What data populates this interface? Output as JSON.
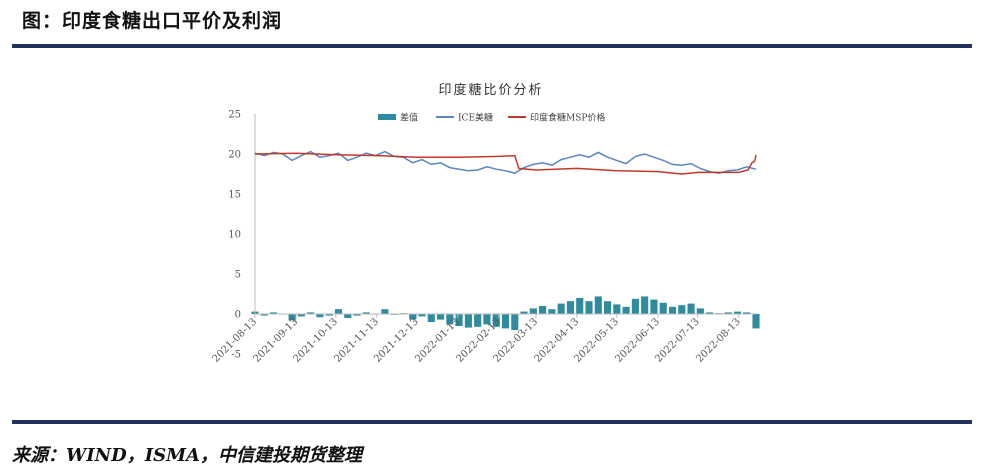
{
  "figure_title": "图：印度食糖出口平价及利润",
  "source": "来源：WIND，ISMA，中信建投期货整理",
  "colors": {
    "diff": "#2e8ba0",
    "ice": "#5b86c3",
    "msp": "#c0392b",
    "rule": "#1f2f5c"
  },
  "chart_data": {
    "type": "line",
    "title": "印度糖比价分析",
    "ylim": [
      -5,
      25
    ],
    "yticks": [
      "25",
      "20",
      "15",
      "10",
      "5",
      "0",
      "-5"
    ],
    "ytick_values": [
      25,
      20,
      15,
      10,
      5,
      0,
      -5
    ],
    "xticks": [
      "2021-08-13",
      "2021-09-13",
      "2021-10-13",
      "2021-11-13",
      "2021-12-13",
      "2022-01-13",
      "2022-02-13",
      "2022-03-13",
      "2022-04-13",
      "2022-05-13",
      "2022-06-13",
      "2022-07-13",
      "2022-08-13"
    ],
    "xlim": [
      "2021-08-13",
      "2022-08-26"
    ],
    "legend": [
      "差值",
      "ICE美糖",
      "印度食糖MSP价格"
    ],
    "legend_position": "top",
    "grid": false,
    "series": [
      {
        "name": "ICE美糖",
        "type": "line",
        "x": [
          "2021-08-13",
          "2021-08-20",
          "2021-08-27",
          "2021-09-03",
          "2021-09-10",
          "2021-09-17",
          "2021-09-24",
          "2021-10-01",
          "2021-10-08",
          "2021-10-15",
          "2021-10-22",
          "2021-10-29",
          "2021-11-05",
          "2021-11-12",
          "2021-11-19",
          "2021-11-26",
          "2021-12-03",
          "2021-12-10",
          "2021-12-17",
          "2021-12-24",
          "2021-12-31",
          "2022-01-07",
          "2022-01-14",
          "2022-01-21",
          "2022-01-28",
          "2022-02-04",
          "2022-02-11",
          "2022-02-18",
          "2022-02-25",
          "2022-03-04",
          "2022-03-11",
          "2022-03-18",
          "2022-03-25",
          "2022-04-01",
          "2022-04-08",
          "2022-04-15",
          "2022-04-22",
          "2022-04-29",
          "2022-05-06",
          "2022-05-13",
          "2022-05-20",
          "2022-05-27",
          "2022-06-03",
          "2022-06-10",
          "2022-06-17",
          "2022-06-24",
          "2022-07-01",
          "2022-07-08",
          "2022-07-15",
          "2022-07-22",
          "2022-07-29",
          "2022-08-05",
          "2022-08-12",
          "2022-08-19",
          "2022-08-26"
        ],
        "values": [
          20.1,
          19.8,
          20.2,
          20.0,
          19.2,
          19.8,
          20.3,
          19.6,
          19.8,
          20.1,
          19.2,
          19.6,
          20.1,
          19.8,
          20.3,
          19.7,
          19.6,
          18.9,
          19.3,
          18.7,
          18.9,
          18.3,
          18.1,
          17.9,
          18.0,
          18.4,
          18.1,
          17.9,
          17.6,
          18.3,
          18.7,
          18.9,
          18.6,
          19.3,
          19.6,
          19.9,
          19.6,
          20.2,
          19.6,
          19.2,
          18.8,
          19.7,
          20.0,
          19.6,
          19.2,
          18.7,
          18.6,
          18.8,
          18.2,
          17.8,
          17.6,
          17.9,
          18.0,
          18.4,
          18.1
        ]
      },
      {
        "name": "印度食糖MSP价格",
        "type": "line",
        "x": [
          "2021-08-13",
          "2021-09-13",
          "2021-10-13",
          "2021-11-13",
          "2021-12-13",
          "2022-01-13",
          "2022-02-13",
          "2022-02-25",
          "2022-02-28",
          "2022-03-13",
          "2022-04-13",
          "2022-05-13",
          "2022-06-13",
          "2022-07-01",
          "2022-07-13",
          "2022-08-13",
          "2022-08-20",
          "2022-08-23",
          "2022-08-25",
          "2022-08-26"
        ],
        "values": [
          20.0,
          20.1,
          19.9,
          19.8,
          19.6,
          19.6,
          19.7,
          19.8,
          18.2,
          18.0,
          18.2,
          17.9,
          17.8,
          17.5,
          17.7,
          17.7,
          18.0,
          18.9,
          19.1,
          19.9
        ]
      },
      {
        "name": "差值",
        "type": "area",
        "x": [
          "2021-08-13",
          "2021-08-20",
          "2021-08-27",
          "2021-09-03",
          "2021-09-10",
          "2021-09-17",
          "2021-09-24",
          "2021-10-01",
          "2021-10-08",
          "2021-10-15",
          "2021-10-22",
          "2021-10-29",
          "2021-11-05",
          "2021-11-12",
          "2021-11-19",
          "2021-11-26",
          "2021-12-03",
          "2021-12-10",
          "2021-12-17",
          "2021-12-24",
          "2021-12-31",
          "2022-01-07",
          "2022-01-14",
          "2022-01-21",
          "2022-01-28",
          "2022-02-04",
          "2022-02-11",
          "2022-02-18",
          "2022-02-25",
          "2022-03-04",
          "2022-03-11",
          "2022-03-18",
          "2022-03-25",
          "2022-04-01",
          "2022-04-08",
          "2022-04-15",
          "2022-04-22",
          "2022-04-29",
          "2022-05-06",
          "2022-05-13",
          "2022-05-20",
          "2022-05-27",
          "2022-06-03",
          "2022-06-10",
          "2022-06-17",
          "2022-06-24",
          "2022-07-01",
          "2022-07-08",
          "2022-07-15",
          "2022-07-22",
          "2022-07-29",
          "2022-08-05",
          "2022-08-12",
          "2022-08-19",
          "2022-08-26"
        ],
        "values": [
          0.3,
          -0.2,
          0.2,
          0.0,
          -0.8,
          -0.3,
          0.2,
          -0.4,
          -0.2,
          0.6,
          -0.5,
          -0.2,
          0.2,
          0.0,
          0.6,
          -0.1,
          0.1,
          -0.7,
          -0.3,
          -1.0,
          -0.7,
          -1.3,
          -1.5,
          -1.7,
          -1.6,
          -1.3,
          -1.6,
          -1.8,
          -2.0,
          0.3,
          0.7,
          1.0,
          0.6,
          1.3,
          1.6,
          2.0,
          1.6,
          2.2,
          1.6,
          1.2,
          0.9,
          1.9,
          2.2,
          1.8,
          1.4,
          0.9,
          1.1,
          1.3,
          0.7,
          0.2,
          0.1,
          0.2,
          0.3,
          0.2,
          -1.8
        ]
      }
    ]
  }
}
